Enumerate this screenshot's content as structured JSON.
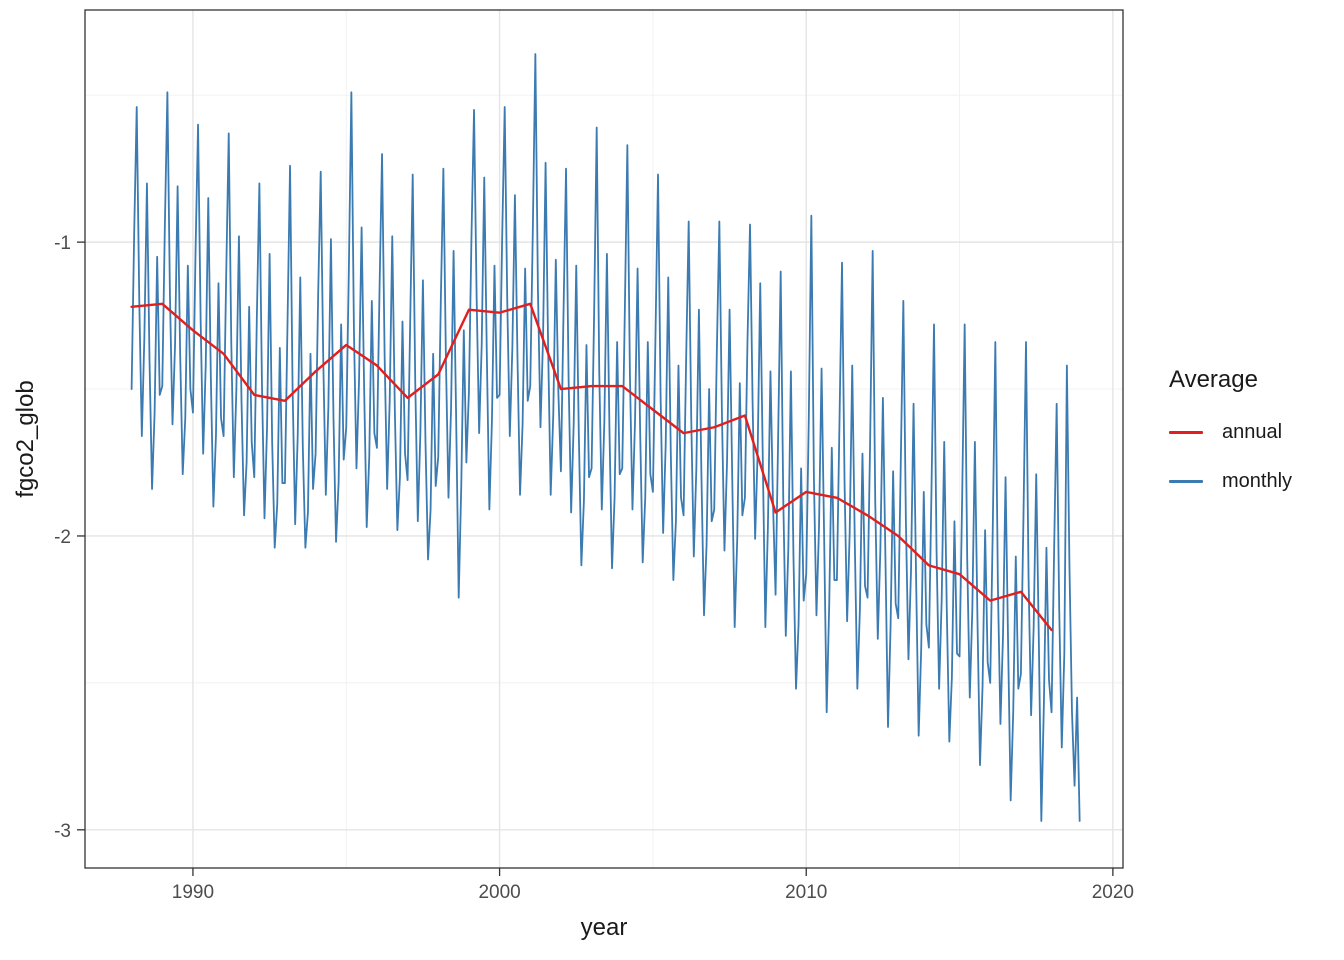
{
  "chart_data": {
    "type": "line",
    "title": "",
    "xlabel": "year",
    "ylabel": "fgco2_glob",
    "xlim": [
      1986.48,
      2020.33
    ],
    "ylim": [
      -3.13,
      -0.21
    ],
    "x_ticks": [
      1990,
      2000,
      2010,
      2020
    ],
    "x_minor_gridlines": [
      1995,
      2005,
      2015
    ],
    "y_ticks": [
      -1,
      -2,
      -3
    ],
    "y_minor_gridlines": [
      -0.5,
      -1.5,
      -2.5
    ],
    "grid": true,
    "panel_background": "#ffffff",
    "major_grid_color": "#e4e4e4",
    "minor_grid_color": "#f1f1f1",
    "panel_border_color": "#333333",
    "tick_label_color": "#4d4d4d",
    "legend": {
      "title": "Average",
      "position": "right",
      "entries": [
        {
          "label": "annual",
          "color": "#e0201e",
          "series": "annual"
        },
        {
          "label": "monthly",
          "color": "#3b7bb1",
          "series": "monthly"
        }
      ]
    },
    "series": [
      {
        "name": "annual",
        "color": "#e0201e",
        "stroke_width": 2.4,
        "frequency": "annual",
        "x_start": 1988,
        "x": [
          1988,
          1989,
          1990,
          1991,
          1992,
          1993,
          1994,
          1995,
          1996,
          1997,
          1998,
          1999,
          2000,
          2001,
          2002,
          2003,
          2004,
          2005,
          2006,
          2007,
          2008,
          2009,
          2010,
          2011,
          2012,
          2013,
          2014,
          2015,
          2016,
          2017,
          2018
        ],
        "y": [
          -1.22,
          -1.21,
          -1.3,
          -1.38,
          -1.52,
          -1.54,
          -1.44,
          -1.35,
          -1.42,
          -1.53,
          -1.45,
          -1.23,
          -1.24,
          -1.21,
          -1.5,
          -1.49,
          -1.49,
          -1.57,
          -1.65,
          -1.63,
          -1.59,
          -1.92,
          -1.85,
          -1.87,
          -1.93,
          -2.0,
          -2.1,
          -2.13,
          -2.22,
          -2.19,
          -2.32
        ]
      },
      {
        "name": "monthly",
        "color": "#3b7bb1",
        "stroke_width": 1.8,
        "frequency": "monthly",
        "x_start": 1988,
        "y": [
          -1.5,
          -0.97,
          -0.54,
          -1.2,
          -1.66,
          -1.32,
          -0.8,
          -1.4,
          -1.84,
          -1.58,
          -1.05,
          -1.52,
          -1.49,
          -0.95,
          -0.49,
          -1.18,
          -1.62,
          -1.35,
          -0.81,
          -1.38,
          -1.79,
          -1.6,
          -1.08,
          -1.5,
          -1.58,
          -1.04,
          -0.6,
          -1.26,
          -1.72,
          -1.42,
          -0.85,
          -1.46,
          -1.9,
          -1.66,
          -1.14,
          -1.6,
          -1.66,
          -1.12,
          -0.63,
          -1.34,
          -1.8,
          -1.5,
          -0.98,
          -1.54,
          -1.93,
          -1.75,
          -1.22,
          -1.68,
          -1.8,
          -1.26,
          -0.8,
          -1.48,
          -1.94,
          -1.63,
          -1.04,
          -1.68,
          -2.04,
          -1.89,
          -1.36,
          -1.82,
          -1.82,
          -1.28,
          -0.74,
          -1.5,
          -1.96,
          -1.66,
          -1.12,
          -1.7,
          -2.04,
          -1.92,
          -1.38,
          -1.84,
          -1.72,
          -1.18,
          -0.76,
          -1.4,
          -1.86,
          -1.56,
          -0.99,
          -1.6,
          -2.02,
          -1.82,
          -1.28,
          -1.74,
          -1.63,
          -1.1,
          -0.49,
          -1.3,
          -1.77,
          -1.47,
          -0.95,
          -1.5,
          -1.97,
          -1.73,
          -1.2,
          -1.65,
          -1.7,
          -1.17,
          -0.7,
          -1.38,
          -1.84,
          -1.54,
          -0.98,
          -1.57,
          -1.98,
          -1.8,
          -1.27,
          -1.72,
          -1.81,
          -1.28,
          -0.77,
          -1.48,
          -1.95,
          -1.65,
          -1.13,
          -1.68,
          -2.08,
          -1.91,
          -1.38,
          -1.83,
          -1.73,
          -1.2,
          -0.75,
          -1.4,
          -1.87,
          -1.57,
          -1.03,
          -1.6,
          -2.21,
          -1.83,
          -1.3,
          -1.75,
          -1.51,
          -0.98,
          -0.55,
          -1.18,
          -1.65,
          -1.35,
          -0.78,
          -1.38,
          -1.91,
          -1.61,
          -1.08,
          -1.53,
          -1.52,
          -0.99,
          -0.54,
          -1.2,
          -1.66,
          -1.36,
          -0.84,
          -1.39,
          -1.86,
          -1.62,
          -1.09,
          -1.54,
          -1.49,
          -0.96,
          -0.36,
          -1.16,
          -1.63,
          -1.33,
          -0.73,
          -1.36,
          -1.86,
          -1.59,
          -1.06,
          -1.51,
          -1.78,
          -1.25,
          -0.75,
          -1.46,
          -1.92,
          -1.62,
          -1.08,
          -1.65,
          -2.1,
          -1.88,
          -1.35,
          -1.8,
          -1.77,
          -1.24,
          -0.61,
          -1.44,
          -1.91,
          -1.61,
          -1.04,
          -1.64,
          -2.11,
          -1.87,
          -1.34,
          -1.79,
          -1.77,
          -1.24,
          -0.67,
          -1.45,
          -1.91,
          -1.61,
          -1.09,
          -1.64,
          -2.09,
          -1.87,
          -1.34,
          -1.79,
          -1.85,
          -1.32,
          -0.77,
          -1.52,
          -1.99,
          -1.69,
          -1.12,
          -1.72,
          -2.15,
          -1.95,
          -1.42,
          -1.87,
          -1.93,
          -1.4,
          -0.93,
          -1.6,
          -2.07,
          -1.77,
          -1.23,
          -1.8,
          -2.27,
          -2.03,
          -1.5,
          -1.95,
          -1.91,
          -1.38,
          -0.93,
          -1.58,
          -2.05,
          -1.75,
          -1.23,
          -1.78,
          -2.31,
          -2.01,
          -1.48,
          -1.93,
          -1.87,
          -1.34,
          -0.94,
          -1.54,
          -2.01,
          -1.71,
          -1.14,
          -1.74,
          -2.31,
          -1.97,
          -1.44,
          -1.89,
          -2.2,
          -1.67,
          -1.1,
          -1.87,
          -2.34,
          -2.04,
          -1.44,
          -2.07,
          -2.52,
          -2.3,
          -1.77,
          -2.22,
          -2.13,
          -1.6,
          -0.91,
          -1.8,
          -2.27,
          -1.97,
          -1.43,
          -2.0,
          -2.6,
          -2.23,
          -1.7,
          -2.15,
          -2.15,
          -1.62,
          -1.07,
          -1.82,
          -2.29,
          -1.99,
          -1.42,
          -2.02,
          -2.52,
          -2.25,
          -1.72,
          -2.17,
          -2.21,
          -1.68,
          -1.03,
          -1.88,
          -2.35,
          -2.05,
          -1.53,
          -2.08,
          -2.65,
          -2.31,
          -1.78,
          -2.23,
          -2.28,
          -1.75,
          -1.2,
          -1.95,
          -2.42,
          -2.12,
          -1.55,
          -2.15,
          -2.68,
          -2.38,
          -1.85,
          -2.3,
          -2.38,
          -1.85,
          -1.28,
          -2.05,
          -2.52,
          -2.22,
          -1.68,
          -2.25,
          -2.7,
          -2.48,
          -1.95,
          -2.4,
          -2.41,
          -1.88,
          -1.28,
          -2.08,
          -2.55,
          -2.25,
          -1.68,
          -2.28,
          -2.78,
          -2.51,
          -1.98,
          -2.43,
          -2.5,
          -1.97,
          -1.34,
          -2.17,
          -2.64,
          -2.34,
          -1.8,
          -2.37,
          -2.9,
          -2.6,
          -2.07,
          -2.52,
          -2.47,
          -1.94,
          -1.34,
          -2.14,
          -2.61,
          -2.31,
          -1.79,
          -2.34,
          -2.97,
          -2.57,
          -2.04,
          -2.49,
          -2.6,
          -2.05,
          -1.55,
          -2.25,
          -2.72,
          -2.4,
          -1.42,
          -2.1,
          -2.6,
          -2.85,
          -2.55,
          -2.97
        ]
      }
    ]
  }
}
